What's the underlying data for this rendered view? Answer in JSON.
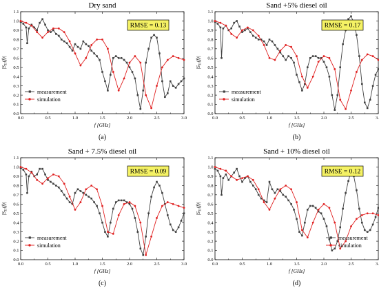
{
  "chart_data": [
    {
      "type": "line",
      "title": "Dry sand",
      "caption": "(a)",
      "annotation": "RMSE = 0.13",
      "xlabel": "f [GHz]",
      "ylabel": "|S11(f)|",
      "xlim": [
        0,
        3
      ],
      "ylim": [
        0,
        1.1
      ],
      "x_ticks": [
        "0.0",
        "0.5",
        "1.0",
        "1.5",
        "2.0",
        "2.5",
        "3.0"
      ],
      "y_ticks": [
        "0.0",
        "0.1",
        "0.2",
        "0.3",
        "0.4",
        "0.5",
        "0.6",
        "0.7",
        "0.8",
        "0.9",
        "1.0",
        "1.1"
      ],
      "legend_position": "bottom-left",
      "series": [
        {
          "name": "measurement",
          "color": "#404040",
          "marker": "square",
          "x": [
            0,
            0.05,
            0.1,
            0.12,
            0.15,
            0.2,
            0.25,
            0.3,
            0.35,
            0.4,
            0.45,
            0.5,
            0.55,
            0.6,
            0.65,
            0.7,
            0.75,
            0.8,
            0.85,
            0.9,
            0.95,
            1.0,
            1.05,
            1.1,
            1.15,
            1.2,
            1.25,
            1.3,
            1.35,
            1.4,
            1.45,
            1.5,
            1.55,
            1.6,
            1.65,
            1.7,
            1.75,
            1.8,
            1.85,
            1.9,
            1.95,
            2.0,
            2.05,
            2.1,
            2.15,
            2.2,
            2.25,
            2.3,
            2.35,
            2.4,
            2.45,
            2.5,
            2.55,
            2.6,
            2.65,
            2.7,
            2.75,
            2.8,
            2.85,
            2.9,
            2.95,
            3.0
          ],
          "y": [
            0.99,
            0.97,
            0.93,
            0.76,
            0.92,
            0.96,
            0.93,
            0.9,
            0.98,
            1.02,
            0.96,
            0.9,
            0.88,
            0.9,
            0.86,
            0.84,
            0.8,
            0.78,
            0.76,
            0.72,
            0.68,
            0.75,
            0.72,
            0.7,
            0.78,
            0.75,
            0.73,
            0.68,
            0.65,
            0.62,
            0.58,
            0.45,
            0.35,
            0.25,
            0.42,
            0.6,
            0.62,
            0.6,
            0.6,
            0.58,
            0.55,
            0.5,
            0.45,
            0.38,
            0.2,
            0.05,
            0.25,
            0.55,
            0.7,
            0.82,
            0.85,
            0.82,
            0.65,
            0.35,
            0.18,
            0.22,
            0.35,
            0.3,
            0.28,
            0.32,
            0.35,
            0.38
          ]
        },
        {
          "name": "simulation",
          "color": "#e02020",
          "marker": "circle",
          "x": [
            0,
            0.1,
            0.2,
            0.3,
            0.4,
            0.5,
            0.6,
            0.7,
            0.8,
            0.9,
            1.0,
            1.1,
            1.2,
            1.3,
            1.4,
            1.5,
            1.6,
            1.7,
            1.8,
            1.9,
            2.0,
            2.1,
            2.2,
            2.3,
            2.4,
            2.5,
            2.6,
            2.7,
            2.8,
            2.9,
            3.0
          ],
          "y": [
            1.0,
            0.98,
            0.95,
            0.88,
            0.82,
            0.88,
            0.92,
            0.92,
            0.88,
            0.78,
            0.65,
            0.52,
            0.6,
            0.74,
            0.8,
            0.8,
            0.7,
            0.45,
            0.25,
            0.38,
            0.55,
            0.62,
            0.55,
            0.2,
            0.06,
            0.3,
            0.5,
            0.58,
            0.62,
            0.6,
            0.58
          ]
        }
      ]
    },
    {
      "type": "line",
      "title": "Sand +5% diesel oil",
      "caption": "(b)",
      "annotation": "RMSE = 0.17",
      "xlabel": "f [GHz]",
      "ylabel": "|S11(f)|",
      "xlim": [
        0,
        3
      ],
      "ylim": [
        0,
        1.1
      ],
      "x_ticks": [
        "0.0",
        "0.5",
        "1.0",
        "1.5",
        "2.0",
        "2.5",
        "3.0"
      ],
      "y_ticks": [
        "0.0",
        "0.1",
        "0.2",
        "0.3",
        "0.4",
        "0.5",
        "0.6",
        "0.7",
        "0.8",
        "0.9",
        "1.0",
        "1.1"
      ],
      "legend_position": "bottom-left",
      "series": [
        {
          "name": "measurement",
          "color": "#404040",
          "marker": "square",
          "x": [
            0,
            0.05,
            0.1,
            0.12,
            0.15,
            0.2,
            0.25,
            0.3,
            0.35,
            0.4,
            0.45,
            0.5,
            0.55,
            0.6,
            0.65,
            0.7,
            0.75,
            0.8,
            0.85,
            0.9,
            0.95,
            1.0,
            1.05,
            1.1,
            1.15,
            1.2,
            1.25,
            1.3,
            1.35,
            1.4,
            1.45,
            1.5,
            1.55,
            1.6,
            1.65,
            1.7,
            1.75,
            1.8,
            1.85,
            1.9,
            1.95,
            2.0,
            2.05,
            2.1,
            2.15,
            2.2,
            2.25,
            2.3,
            2.35,
            2.4,
            2.45,
            2.5,
            2.55,
            2.6,
            2.65,
            2.7,
            2.75,
            2.8,
            2.85,
            2.9,
            2.95,
            3.0
          ],
          "y": [
            0.99,
            0.97,
            0.93,
            0.6,
            0.92,
            0.95,
            0.9,
            0.92,
            0.98,
            1.0,
            0.94,
            0.88,
            0.9,
            0.92,
            0.88,
            0.84,
            0.82,
            0.8,
            0.8,
            0.78,
            0.74,
            0.8,
            0.78,
            0.74,
            0.7,
            0.66,
            0.62,
            0.58,
            0.62,
            0.6,
            0.55,
            0.42,
            0.34,
            0.25,
            0.32,
            0.5,
            0.6,
            0.62,
            0.62,
            0.6,
            0.6,
            0.56,
            0.5,
            0.4,
            0.2,
            0.04,
            0.2,
            0.5,
            0.75,
            0.9,
            1.02,
            1.05,
            0.98,
            0.85,
            0.62,
            0.32,
            0.12,
            0.06,
            0.15,
            0.3,
            0.42,
            0.48
          ]
        },
        {
          "name": "simulation",
          "color": "#e02020",
          "marker": "circle",
          "x": [
            0,
            0.1,
            0.2,
            0.3,
            0.4,
            0.5,
            0.6,
            0.7,
            0.8,
            0.9,
            1.0,
            1.1,
            1.2,
            1.3,
            1.4,
            1.5,
            1.6,
            1.7,
            1.8,
            1.9,
            2.0,
            2.1,
            2.2,
            2.3,
            2.4,
            2.5,
            2.6,
            2.7,
            2.8,
            2.9,
            3.0
          ],
          "y": [
            1.0,
            0.98,
            0.95,
            0.86,
            0.82,
            0.9,
            0.93,
            0.9,
            0.84,
            0.74,
            0.6,
            0.58,
            0.68,
            0.74,
            0.72,
            0.62,
            0.4,
            0.28,
            0.4,
            0.56,
            0.62,
            0.6,
            0.48,
            0.15,
            0.05,
            0.25,
            0.45,
            0.58,
            0.64,
            0.62,
            0.58
          ]
        }
      ]
    },
    {
      "type": "line",
      "title": "Sand + 7.5% diesel oil",
      "caption": "(c)",
      "annotation": "RMSE = 0.09",
      "xlabel": "f [GHz]",
      "ylabel": "|S11(f)|",
      "xlim": [
        0,
        3
      ],
      "ylim": [
        0,
        1.1
      ],
      "x_ticks": [
        "0.0",
        "0.5",
        "1.0",
        "1.5",
        "2.0",
        "2.5",
        "3.0"
      ],
      "y_ticks": [
        "0.0",
        "0.1",
        "0.2",
        "0.3",
        "0.4",
        "0.5",
        "0.6",
        "0.7",
        "0.8",
        "0.9",
        "1.0",
        "1.1"
      ],
      "legend_position": "bottom-left",
      "series": [
        {
          "name": "measurement",
          "color": "#404040",
          "marker": "square",
          "x": [
            0,
            0.05,
            0.1,
            0.12,
            0.15,
            0.2,
            0.25,
            0.3,
            0.35,
            0.4,
            0.45,
            0.5,
            0.55,
            0.6,
            0.65,
            0.7,
            0.75,
            0.8,
            0.85,
            0.9,
            0.95,
            1.0,
            1.05,
            1.1,
            1.15,
            1.2,
            1.25,
            1.3,
            1.35,
            1.4,
            1.45,
            1.5,
            1.55,
            1.6,
            1.65,
            1.7,
            1.75,
            1.8,
            1.85,
            1.9,
            1.95,
            2.0,
            2.05,
            2.1,
            2.15,
            2.2,
            2.25,
            2.3,
            2.35,
            2.4,
            2.45,
            2.5,
            2.55,
            2.6,
            2.65,
            2.7,
            2.75,
            2.8,
            2.85,
            2.9,
            2.95,
            3.0
          ],
          "y": [
            0.99,
            0.97,
            0.92,
            0.72,
            0.9,
            0.95,
            0.9,
            0.92,
            0.98,
            0.98,
            0.92,
            0.86,
            0.84,
            0.82,
            0.8,
            0.78,
            0.74,
            0.7,
            0.66,
            0.62,
            0.6,
            0.72,
            0.76,
            0.74,
            0.72,
            0.7,
            0.68,
            0.66,
            0.62,
            0.58,
            0.5,
            0.4,
            0.3,
            0.25,
            0.4,
            0.55,
            0.62,
            0.64,
            0.64,
            0.64,
            0.62,
            0.6,
            0.55,
            0.45,
            0.3,
            0.12,
            0.05,
            0.25,
            0.5,
            0.68,
            0.78,
            0.84,
            0.8,
            0.72,
            0.6,
            0.48,
            0.38,
            0.32,
            0.3,
            0.35,
            0.42,
            0.5
          ]
        },
        {
          "name": "simulation",
          "color": "#e02020",
          "marker": "circle",
          "x": [
            0,
            0.1,
            0.2,
            0.3,
            0.4,
            0.5,
            0.6,
            0.7,
            0.8,
            0.9,
            1.0,
            1.1,
            1.2,
            1.3,
            1.4,
            1.5,
            1.6,
            1.7,
            1.8,
            1.9,
            2.0,
            2.1,
            2.2,
            2.3,
            2.4,
            2.5,
            2.6,
            2.7,
            2.8,
            2.9,
            3.0
          ],
          "y": [
            1.0,
            0.98,
            0.94,
            0.86,
            0.82,
            0.88,
            0.92,
            0.9,
            0.82,
            0.68,
            0.54,
            0.62,
            0.76,
            0.8,
            0.76,
            0.58,
            0.3,
            0.28,
            0.48,
            0.6,
            0.62,
            0.58,
            0.4,
            0.05,
            0.25,
            0.45,
            0.58,
            0.62,
            0.6,
            0.58,
            0.56
          ]
        }
      ]
    },
    {
      "type": "line",
      "title": "Sand + 10% diesel oil",
      "caption": "(d)",
      "annotation": "RMSE = 0.12",
      "xlabel": "f [GHz]",
      "ylabel": "|S11(f)|",
      "xlim": [
        0,
        3
      ],
      "ylim": [
        0,
        1.1
      ],
      "x_ticks": [
        "0.0",
        "0.5",
        "1.0",
        "1.5",
        "2.0",
        "2.5",
        "3.0"
      ],
      "y_ticks": [
        "0.0",
        "0.1",
        "0.2",
        "0.3",
        "0.4",
        "0.5",
        "0.6",
        "0.7",
        "0.8",
        "0.9",
        "1.0",
        "1.1"
      ],
      "legend_position": "bottom-right",
      "series": [
        {
          "name": "measurement",
          "color": "#404040",
          "marker": "square",
          "x": [
            0,
            0.05,
            0.1,
            0.12,
            0.15,
            0.2,
            0.25,
            0.3,
            0.35,
            0.4,
            0.45,
            0.5,
            0.55,
            0.6,
            0.65,
            0.7,
            0.75,
            0.8,
            0.85,
            0.9,
            0.95,
            1.0,
            1.05,
            1.1,
            1.15,
            1.2,
            1.25,
            1.3,
            1.35,
            1.4,
            1.45,
            1.5,
            1.55,
            1.6,
            1.65,
            1.7,
            1.75,
            1.8,
            1.85,
            1.9,
            1.95,
            2.0,
            2.05,
            2.1,
            2.15,
            2.2,
            2.25,
            2.3,
            2.35,
            2.4,
            2.45,
            2.5,
            2.55,
            2.6,
            2.65,
            2.7,
            2.75,
            2.8,
            2.85,
            2.9,
            2.95,
            3.0
          ],
          "y": [
            0.98,
            0.96,
            0.9,
            0.7,
            0.88,
            0.92,
            0.86,
            0.9,
            0.94,
            0.98,
            0.9,
            0.84,
            0.88,
            0.9,
            0.84,
            0.8,
            0.76,
            0.7,
            0.66,
            0.64,
            0.62,
            0.84,
            0.76,
            0.72,
            0.76,
            0.74,
            0.7,
            0.68,
            0.64,
            0.6,
            0.54,
            0.44,
            0.3,
            0.26,
            0.4,
            0.54,
            0.58,
            0.58,
            0.56,
            0.52,
            0.5,
            0.44,
            0.36,
            0.22,
            0.1,
            0.12,
            0.2,
            0.35,
            0.55,
            0.72,
            0.85,
            0.95,
            0.9,
            0.75,
            0.55,
            0.4,
            0.32,
            0.3,
            0.32,
            0.38,
            0.46,
            0.56
          ]
        },
        {
          "name": "simulation",
          "color": "#e02020",
          "marker": "circle",
          "x": [
            0,
            0.1,
            0.2,
            0.3,
            0.4,
            0.5,
            0.6,
            0.7,
            0.8,
            0.9,
            1.0,
            1.1,
            1.2,
            1.3,
            1.4,
            1.5,
            1.6,
            1.7,
            1.8,
            1.9,
            2.0,
            2.1,
            2.2,
            2.3,
            2.4,
            2.5,
            2.6,
            2.7,
            2.8,
            2.9,
            3.0
          ],
          "y": [
            1.0,
            0.98,
            0.96,
            0.9,
            0.86,
            0.88,
            0.9,
            0.86,
            0.76,
            0.62,
            0.54,
            0.66,
            0.76,
            0.8,
            0.76,
            0.62,
            0.32,
            0.24,
            0.4,
            0.54,
            0.6,
            0.56,
            0.4,
            0.12,
            0.2,
            0.36,
            0.44,
            0.48,
            0.5,
            0.5,
            0.48
          ]
        }
      ]
    }
  ]
}
